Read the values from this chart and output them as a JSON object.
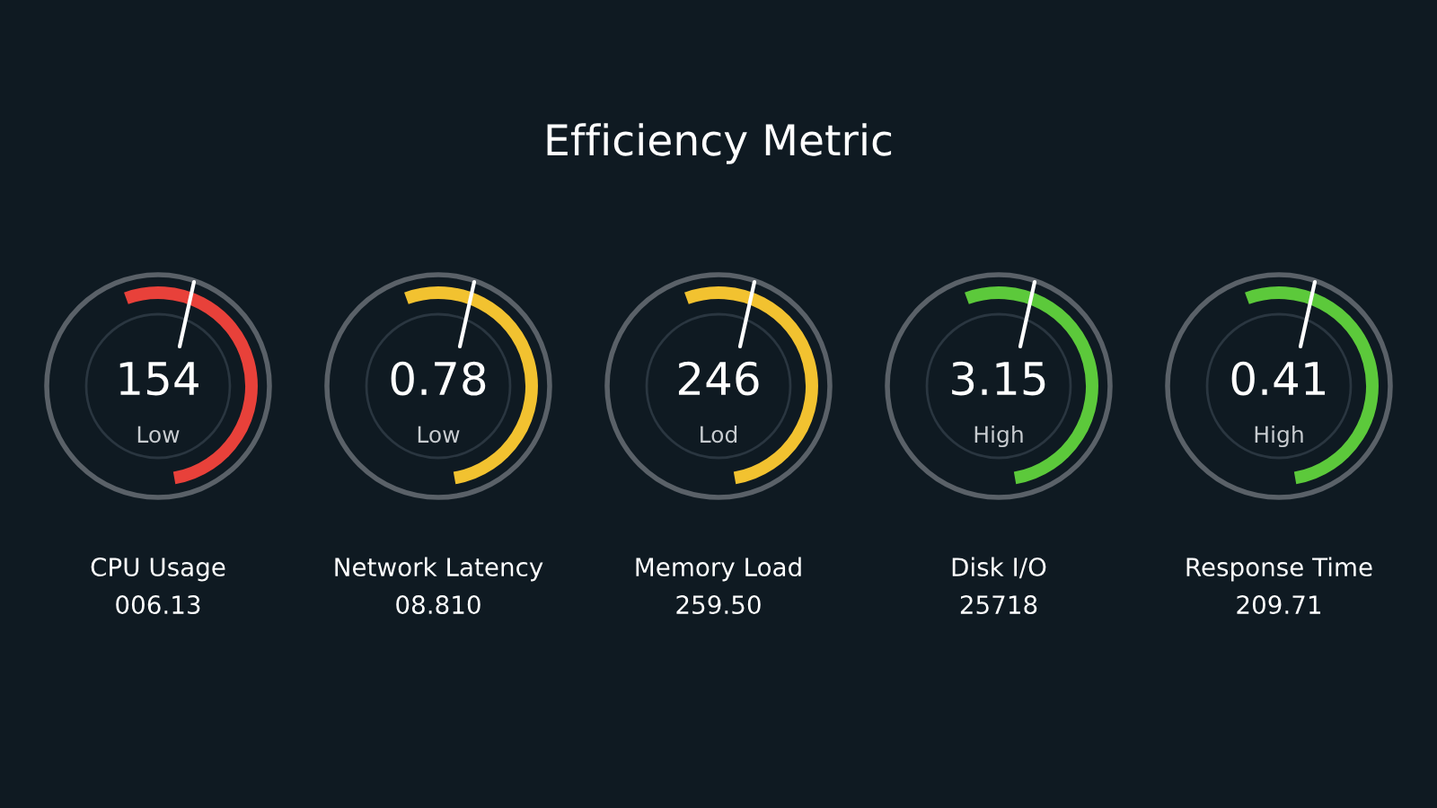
{
  "chart_data": {
    "type": "other",
    "title": "Efficiency Metric",
    "categories": [
      "CPU Usage",
      "Network Latency",
      "Memory Load",
      "Disk I/O",
      "Response Time"
    ],
    "data_labels": true,
    "series": [
      {
        "values": [
          154,
          0.78,
          246,
          3.15,
          0.41
        ],
        "colors": [
          "#e8413a",
          "#f2c230",
          "#f2c230",
          "#5cc93b",
          "#5cc93b"
        ]
      },
      {
        "values": [
          6.13,
          8.81,
          259.5,
          25718,
          209.71
        ],
        "value_labels": [
          "006.13",
          "08.810",
          "259.50",
          "25718",
          "209.71"
        ]
      }
    ],
    "annotations": [
      "Low",
      "Low",
      "Lod",
      "High",
      "High"
    ]
  }
}
